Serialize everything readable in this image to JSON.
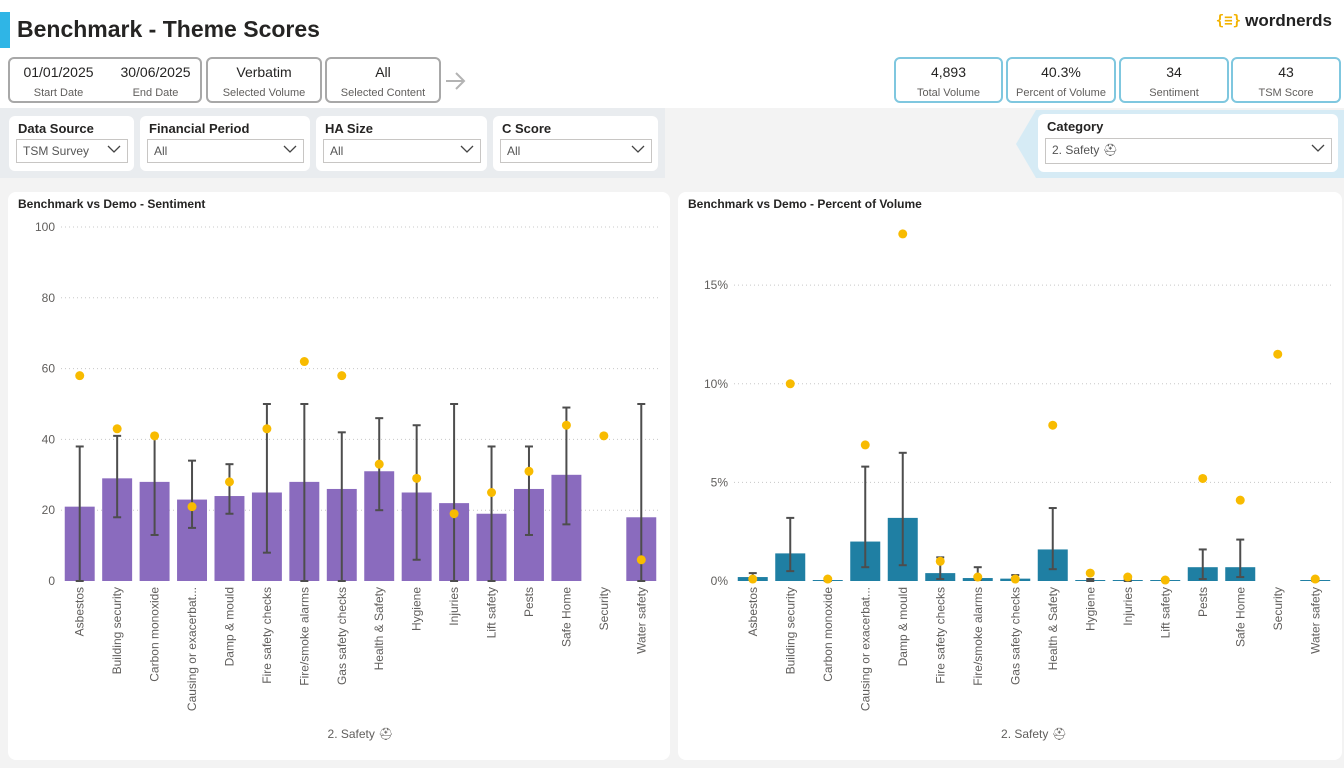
{
  "header": {
    "title": "Benchmark - Theme Scores",
    "logo_text": "wordnerds",
    "logo_mark": "{≡}"
  },
  "filters": {
    "start_date": "01/01/2025",
    "start_label": "Start Date",
    "end_date": "30/06/2025",
    "end_label": "End Date",
    "volume": "Verbatim",
    "volume_label": "Selected Volume",
    "content": "All",
    "content_label": "Selected Content"
  },
  "kpis": [
    {
      "value": "4,893",
      "label": "Total Volume"
    },
    {
      "value": "40.3%",
      "label": "Percent of Volume"
    },
    {
      "value": "34",
      "label": "Sentiment"
    },
    {
      "value": "43",
      "label": "TSM Score"
    }
  ],
  "slicers": [
    {
      "label": "Data Source",
      "value": "TSM Survey"
    },
    {
      "label": "Financial Period",
      "value": "All"
    },
    {
      "label": "HA Size",
      "value": "All"
    },
    {
      "label": "C Score",
      "value": "All"
    }
  ],
  "category": {
    "label": "Category",
    "value": "2. Safety ⛑"
  },
  "colors": {
    "accent": "#2fb5e6",
    "sentiment_bar": "#8a6bbe",
    "volume_bar": "#1f7fa3",
    "dot": "#f8bb00",
    "error_bar": "#4d4d4d"
  },
  "chart_data": [
    {
      "type": "bar",
      "title": "Benchmark vs Demo - Sentiment",
      "xlabel": "2. Safety ⛑",
      "ylim": [
        0,
        100
      ],
      "yticks": [
        "0",
        "20",
        "40",
        "60",
        "80",
        "100"
      ],
      "categories": [
        "Asbestos",
        "Building security",
        "Carbon monoxide",
        "Causing or exacerbat...",
        "Damp & mould",
        "Fire safety checks",
        "Fire/smoke alarms",
        "Gas safety checks",
        "Health & Safety",
        "Hygiene",
        "Injuries",
        "Lift safety",
        "Pests",
        "Safe Home",
        "Security",
        "Water safety"
      ],
      "bars": [
        21,
        29,
        28,
        23,
        24,
        25,
        28,
        26,
        31,
        25,
        22,
        19,
        26,
        30,
        null,
        18
      ],
      "err_low": [
        0,
        18,
        13,
        15,
        19,
        8,
        0,
        0,
        20,
        6,
        0,
        0,
        13,
        16,
        null,
        0
      ],
      "err_high": [
        38,
        41,
        41,
        34,
        33,
        50,
        50,
        42,
        46,
        44,
        50,
        38,
        38,
        49,
        null,
        50
      ],
      "dots": [
        58,
        43,
        41,
        21,
        28,
        43,
        62,
        58,
        33,
        29,
        19,
        25,
        31,
        44,
        41,
        6
      ]
    },
    {
      "type": "bar",
      "title": "Benchmark vs Demo - Percent of Volume",
      "xlabel": "2. Safety ⛑",
      "ylim": [
        0,
        18
      ],
      "yticks": [
        "0%",
        "5%",
        "10%",
        "15%"
      ],
      "categories": [
        "Asbestos",
        "Building security",
        "Carbon monoxide",
        "Causing or exacerbat...",
        "Damp & mould",
        "Fire safety checks",
        "Fire/smoke alarms",
        "Gas safety checks",
        "Health & Safety",
        "Hygiene",
        "Injuries",
        "Lift safety",
        "Pests",
        "Safe Home",
        "Security",
        "Water safety"
      ],
      "bars": [
        0.2,
        1.4,
        0.05,
        2.0,
        3.2,
        0.4,
        0.15,
        0.12,
        1.6,
        0.05,
        0.05,
        0.05,
        0.7,
        0.7,
        null,
        0.05
      ],
      "err_low": [
        0.1,
        0.5,
        0,
        0.7,
        0.8,
        0.1,
        0.05,
        0.05,
        0.6,
        0,
        0,
        0,
        0.1,
        0.2,
        null,
        0
      ],
      "err_high": [
        0.4,
        3.2,
        0.1,
        5.8,
        6.5,
        1.2,
        0.7,
        0.3,
        3.7,
        0.1,
        0.1,
        0.1,
        1.6,
        2.1,
        null,
        0.1
      ],
      "dots": [
        0.1,
        10.0,
        0.1,
        6.9,
        17.6,
        1.0,
        0.2,
        0.1,
        7.9,
        0.4,
        0.2,
        0.05,
        5.2,
        4.1,
        11.5,
        0.1
      ]
    }
  ]
}
